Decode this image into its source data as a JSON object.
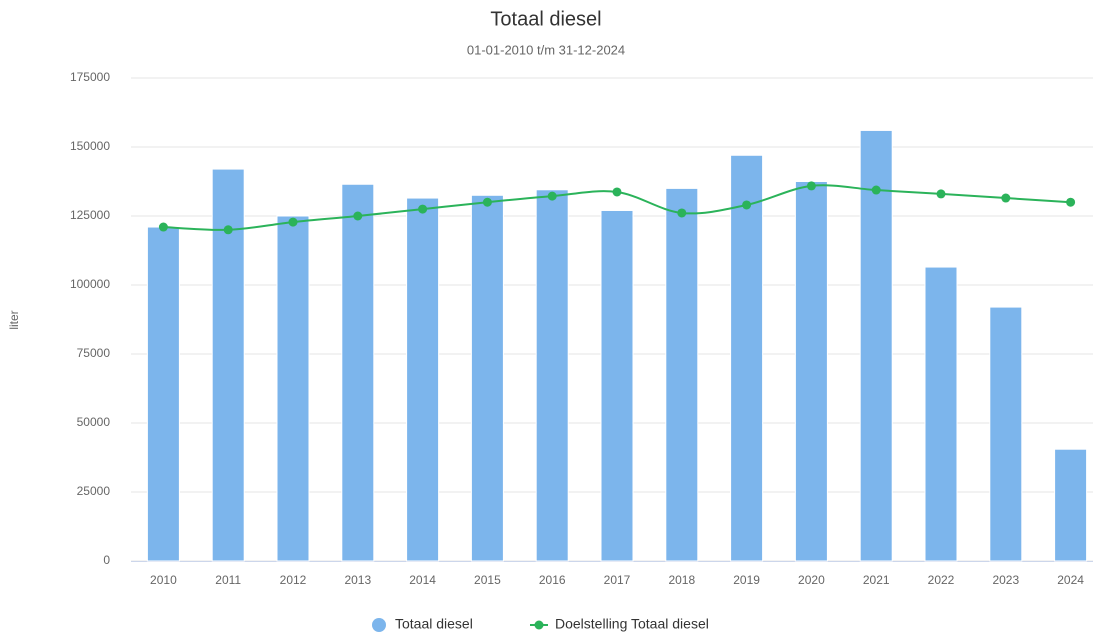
{
  "chart_data": {
    "type": "bar_line",
    "title": "Totaal diesel",
    "subtitle": "01-01-2010 t/m 31-12-2024",
    "y_label": "liter",
    "categories": [
      "2010",
      "2011",
      "2012",
      "2013",
      "2014",
      "2015",
      "2016",
      "2017",
      "2018",
      "2019",
      "2020",
      "2021",
      "2022",
      "2023",
      "2024"
    ],
    "series": [
      {
        "name": "Totaal diesel",
        "type": "bar",
        "color": "#7cb5ec",
        "values": [
          121000,
          142000,
          125000,
          136500,
          131500,
          132500,
          134500,
          127000,
          135000,
          147000,
          137500,
          156000,
          106500,
          92000,
          40500
        ]
      },
      {
        "name": "Doelstelling Totaal diesel",
        "type": "line",
        "color": "#2bb35a",
        "values": [
          121000,
          120000,
          122800,
          125000,
          127500,
          130000,
          132200,
          133700,
          126100,
          129000,
          135900,
          134400,
          133000,
          131500,
          130000
        ]
      }
    ],
    "ylim": [
      0,
      175000
    ],
    "yticks": [
      0,
      25000,
      50000,
      75000,
      100000,
      125000,
      150000,
      175000
    ],
    "grid": true
  }
}
